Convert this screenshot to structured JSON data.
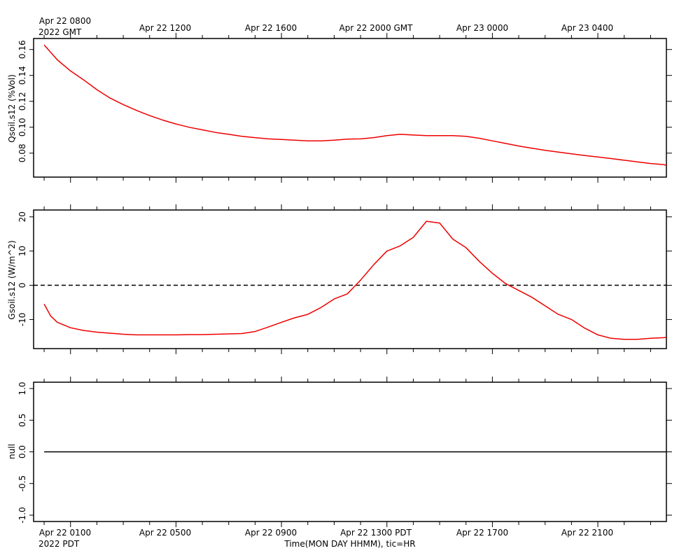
{
  "top_time_labels": {
    "first_line1": "Apr 22 0800",
    "first_line2": "2022 GMT",
    "others": [
      "Apr 22 1200",
      "Apr 22 1600",
      "Apr 22 2000 GMT",
      "Apr 23 0000",
      "Apr 23 0400"
    ]
  },
  "bottom_time_labels": {
    "first_line1": "Apr 22 0100",
    "first_line2": "2022 PDT",
    "others": [
      "Apr 22 0500",
      "Apr 22 0900",
      "Apr 22 1300 PDT",
      "Apr 22 1700",
      "Apr 22 2100"
    ]
  },
  "xlabel": "Time(MON DAY HHMM), tic=HR",
  "chart_data": [
    {
      "type": "line",
      "ylabel": "Qsoil.s12 (%Vol)",
      "ylim": [
        0.0615,
        0.1685
      ],
      "yticks": [
        0.08,
        0.1,
        0.12,
        0.14,
        0.16
      ],
      "ytick_labels": [
        "0.08",
        "0.10",
        "0.12",
        "0.14",
        "0.16"
      ],
      "line_color": "#ee0000",
      "x_unit_note": "hours since Apr 22 0000 PDT",
      "x": [
        0,
        0.5,
        1,
        1.5,
        2,
        2.5,
        3,
        3.5,
        4,
        4.5,
        5,
        5.5,
        6,
        6.5,
        7,
        7.5,
        8,
        8.5,
        9,
        9.5,
        10,
        10.5,
        11,
        11.5,
        12,
        12.5,
        13,
        13.5,
        14,
        14.5,
        15,
        15.5,
        16,
        16.5,
        17,
        17.5,
        18,
        18.5,
        19,
        19.5,
        20,
        20.5,
        21,
        21.5,
        22,
        22.5,
        23,
        23.5,
        24
      ],
      "values": [
        0.1635,
        0.152,
        0.1435,
        0.1365,
        0.129,
        0.1225,
        0.1175,
        0.113,
        0.109,
        0.1055,
        0.1025,
        0.1,
        0.098,
        0.096,
        0.0945,
        0.093,
        0.092,
        0.091,
        0.0905,
        0.09,
        0.0895,
        0.0895,
        0.09,
        0.0908,
        0.091,
        0.092,
        0.0935,
        0.0945,
        0.094,
        0.0935,
        0.0935,
        0.0935,
        0.093,
        0.0915,
        0.0895,
        0.0875,
        0.0855,
        0.0838,
        0.0822,
        0.0808,
        0.0795,
        0.0782,
        0.077,
        0.0758,
        0.0745,
        0.0732,
        0.072,
        0.0712,
        0.0705
      ]
    },
    {
      "type": "line",
      "ylabel": "Gsoil.s12 (W/m^2)",
      "ylim": [
        -18.5,
        22
      ],
      "yticks": [
        -10,
        0,
        10,
        20
      ],
      "ytick_labels": [
        "-10",
        "0",
        "10",
        "20"
      ],
      "zero_line": "dashed",
      "line_color": "#ee0000",
      "x_unit_note": "hours since Apr 22 0000 PDT",
      "x": [
        0,
        0.25,
        0.5,
        1,
        1.5,
        2,
        2.5,
        3,
        3.5,
        4,
        4.5,
        5,
        5.5,
        6,
        6.5,
        7,
        7.5,
        8,
        8.5,
        9,
        9.5,
        10,
        10.5,
        11,
        11.5,
        12,
        12.5,
        13,
        13.5,
        14,
        14.5,
        15,
        15.5,
        16,
        16.5,
        17,
        17.5,
        18,
        18.5,
        19,
        19.5,
        20,
        20.5,
        21,
        21.5,
        22,
        22.5,
        23,
        23.5,
        24
      ],
      "values": [
        -5.5,
        -9.0,
        -10.8,
        -12.4,
        -13.2,
        -13.7,
        -14.0,
        -14.3,
        -14.5,
        -14.5,
        -14.5,
        -14.5,
        -14.4,
        -14.4,
        -14.3,
        -14.2,
        -14.1,
        -13.5,
        -12.2,
        -10.8,
        -9.5,
        -8.5,
        -6.5,
        -4.0,
        -2.5,
        1.5,
        6.0,
        10.0,
        11.5,
        14.0,
        18.7,
        18.2,
        13.5,
        11.0,
        7.0,
        3.5,
        0.5,
        -1.5,
        -3.5,
        -6.0,
        -8.5,
        -10.0,
        -12.5,
        -14.5,
        -15.5,
        -15.8,
        -15.8,
        -15.5,
        -15.3,
        -15.2
      ]
    },
    {
      "type": "line",
      "ylabel": "null",
      "ylim": [
        -1.1,
        1.1
      ],
      "yticks": [
        -1.0,
        -0.5,
        0.0,
        0.5,
        1.0
      ],
      "ytick_labels": [
        "-1.0",
        "-0.5",
        "0.0",
        "0.5",
        "1.0"
      ],
      "line_color": "#000000",
      "x": [
        0,
        24
      ],
      "values": [
        0,
        0
      ]
    }
  ]
}
